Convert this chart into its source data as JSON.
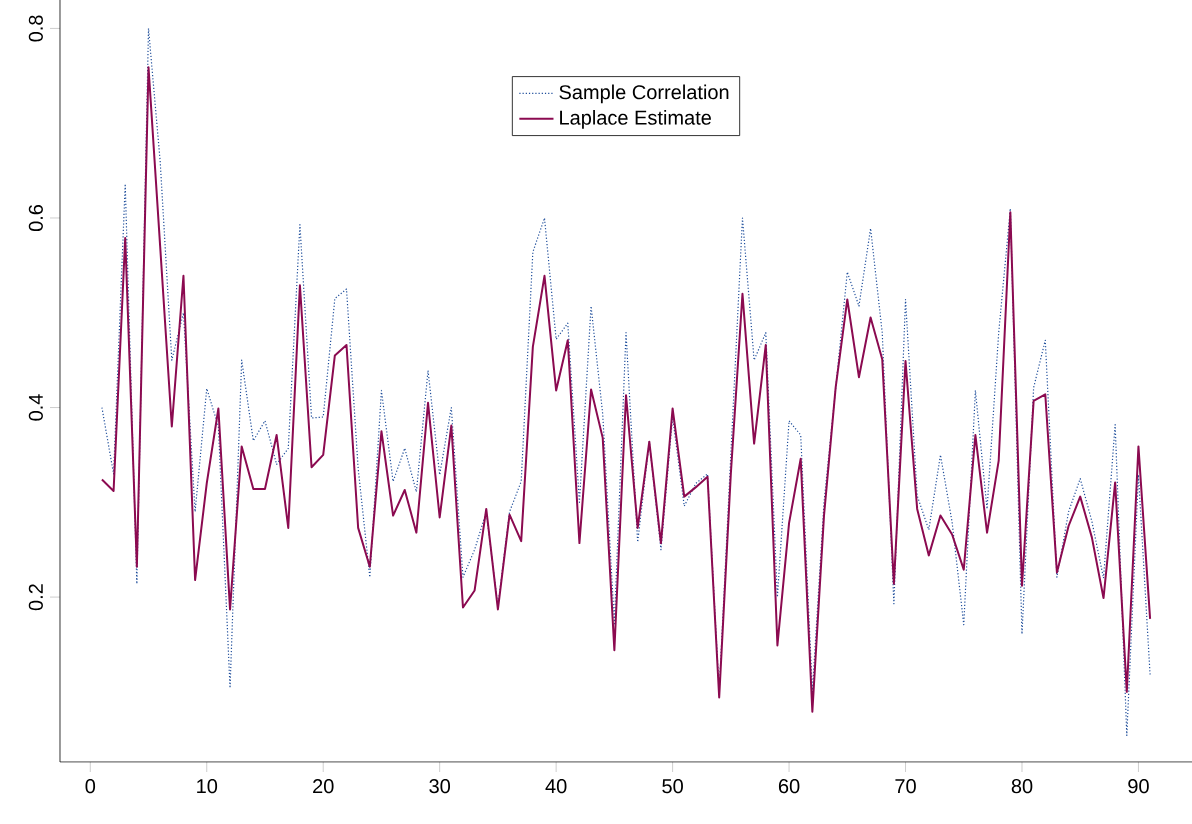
{
  "chart_data": {
    "type": "line",
    "x": [
      1,
      2,
      3,
      4,
      5,
      6,
      7,
      8,
      9,
      10,
      11,
      12,
      13,
      14,
      15,
      16,
      17,
      18,
      19,
      20,
      21,
      22,
      23,
      24,
      25,
      26,
      27,
      28,
      29,
      30,
      31,
      32,
      33,
      34,
      35,
      36,
      37,
      38,
      39,
      40,
      41,
      42,
      43,
      44,
      45,
      46,
      47,
      48,
      49,
      50,
      51,
      52,
      53,
      54,
      55,
      56,
      57,
      58,
      59,
      60,
      61,
      62,
      63,
      64,
      65,
      66,
      67,
      68,
      69,
      70,
      71,
      72,
      73,
      74,
      75,
      76,
      77,
      78,
      79,
      80,
      81,
      82,
      83,
      84,
      85,
      86,
      87,
      88,
      89,
      90,
      91
    ],
    "series": [
      {
        "name": "Sample Correlation",
        "color": "#1f4e9b",
        "line_style": "dotted",
        "values": [
          0.4,
          0.33,
          0.636,
          0.214,
          0.8,
          0.66,
          0.45,
          0.5,
          0.29,
          0.42,
          0.38,
          0.104,
          0.45,
          0.365,
          0.386,
          0.34,
          0.357,
          0.593,
          0.389,
          0.39,
          0.515,
          0.525,
          0.336,
          0.221,
          0.418,
          0.322,
          0.357,
          0.311,
          0.439,
          0.329,
          0.4,
          0.221,
          0.25,
          0.29,
          0.19,
          0.29,
          0.322,
          0.564,
          0.6,
          0.472,
          0.489,
          0.3,
          0.507,
          0.393,
          0.172,
          0.479,
          0.258,
          0.364,
          0.25,
          0.39,
          0.296,
          0.32,
          0.33,
          0.1,
          0.35,
          0.6,
          0.45,
          0.479,
          0.2,
          0.386,
          0.371,
          0.1,
          0.3,
          0.42,
          0.543,
          0.507,
          0.589,
          0.479,
          0.193,
          0.514,
          0.307,
          0.271,
          0.35,
          0.279,
          0.171,
          0.418,
          0.293,
          0.479,
          0.61,
          0.161,
          0.421,
          0.471,
          0.221,
          0.29,
          0.325,
          0.28,
          0.22,
          0.382,
          0.054,
          0.329,
          0.118
        ]
      },
      {
        "name": "Laplace Estimate",
        "color": "#8b0a50",
        "line_style": "solid",
        "values": [
          0.324,
          0.312,
          0.579,
          0.232,
          0.759,
          0.57,
          0.38,
          0.539,
          0.218,
          0.32,
          0.399,
          0.187,
          0.359,
          0.314,
          0.314,
          0.371,
          0.273,
          0.529,
          0.337,
          0.35,
          0.455,
          0.466,
          0.273,
          0.232,
          0.375,
          0.286,
          0.313,
          0.268,
          0.405,
          0.284,
          0.381,
          0.189,
          0.207,
          0.293,
          0.187,
          0.287,
          0.259,
          0.464,
          0.539,
          0.418,
          0.471,
          0.257,
          0.419,
          0.368,
          0.144,
          0.413,
          0.273,
          0.364,
          0.257,
          0.399,
          0.306,
          0.316,
          0.327,
          0.094,
          0.33,
          0.52,
          0.362,
          0.466,
          0.149,
          0.278,
          0.346,
          0.079,
          0.286,
          0.421,
          0.514,
          0.432,
          0.495,
          0.451,
          0.214,
          0.449,
          0.293,
          0.244,
          0.286,
          0.266,
          0.229,
          0.371,
          0.268,
          0.344,
          0.606,
          0.212,
          0.407,
          0.414,
          0.226,
          0.275,
          0.306,
          0.263,
          0.199,
          0.321,
          0.1,
          0.359,
          0.177
        ]
      }
    ],
    "xlim": [
      -2.6,
      94.6
    ],
    "ylim": [
      0.026,
      0.83
    ],
    "xticks": [
      0,
      10,
      20,
      30,
      40,
      50,
      60,
      70,
      80,
      90
    ],
    "yticks": [
      0.2,
      0.4,
      0.6,
      0.8
    ],
    "legend": "top"
  }
}
